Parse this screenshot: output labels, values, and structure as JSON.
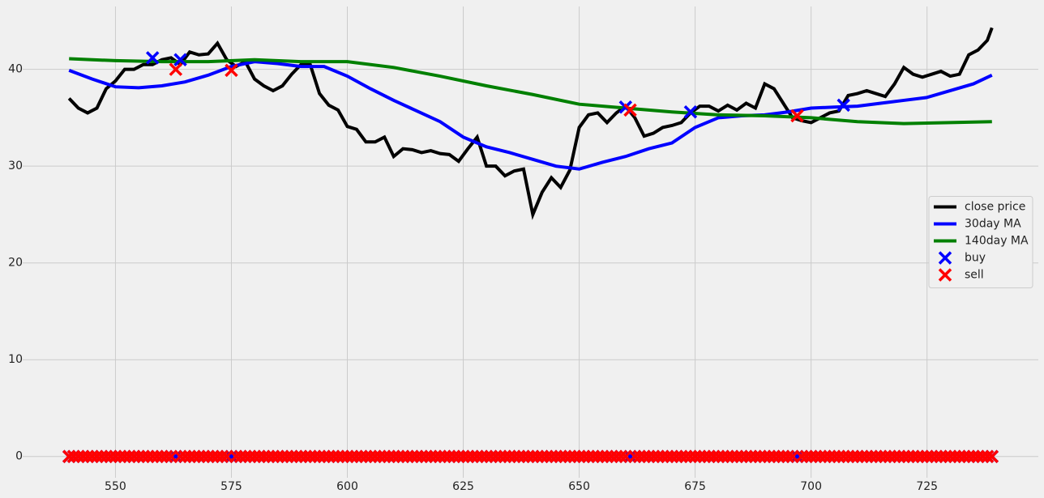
{
  "chart_data": {
    "type": "line",
    "x": [
      540,
      541,
      542,
      543,
      544,
      545,
      546,
      547,
      548,
      549,
      550,
      551,
      552,
      553,
      554,
      555,
      556,
      557,
      558,
      559,
      560,
      561,
      562,
      563,
      564,
      565,
      566,
      567,
      568,
      569,
      570,
      571,
      572,
      573,
      574,
      575,
      576,
      577,
      578,
      579,
      580,
      581,
      582,
      583,
      584,
      585,
      586,
      587,
      588,
      589,
      590,
      591,
      592,
      593,
      594,
      595,
      596,
      597,
      598,
      599,
      600,
      601,
      602,
      603,
      604,
      605,
      606,
      607,
      608,
      609,
      610,
      611,
      612,
      613,
      614,
      615,
      616,
      617,
      618,
      619,
      620,
      621,
      622,
      623,
      624,
      625,
      626,
      627,
      628,
      629,
      630,
      631,
      632,
      633,
      634,
      635,
      636,
      637,
      638,
      639,
      640,
      641,
      642,
      643,
      644,
      645,
      646,
      647,
      648,
      649,
      650,
      651,
      652,
      653,
      654,
      655,
      656,
      657,
      658,
      659,
      660,
      661,
      662,
      663,
      664,
      665,
      666,
      667,
      668,
      669,
      670,
      671,
      672,
      673,
      674,
      675,
      676,
      677,
      678,
      679,
      680,
      681,
      682,
      683,
      684,
      685,
      686,
      687,
      688,
      689,
      690,
      691,
      692,
      693,
      694,
      695,
      696,
      697,
      698,
      699,
      700,
      701,
      702,
      703,
      704,
      705,
      706,
      707,
      708,
      709,
      710,
      711,
      712,
      713,
      714,
      715,
      716,
      717,
      718,
      719,
      720,
      721,
      722,
      723,
      724,
      725,
      726,
      727,
      728,
      729,
      730,
      731,
      732,
      733,
      734,
      735,
      736,
      737,
      738,
      739
    ],
    "series": [
      {
        "name": "close price",
        "color": "#000000",
        "x": [
          540,
          542,
          544,
          546,
          548,
          550,
          552,
          554,
          556,
          558,
          560,
          562,
          564,
          566,
          568,
          570,
          572,
          574,
          576,
          578,
          580,
          582,
          584,
          586,
          588,
          590,
          592,
          594,
          596,
          598,
          600,
          602,
          604,
          606,
          608,
          610,
          612,
          614,
          616,
          618,
          620,
          622,
          624,
          626,
          628,
          630,
          632,
          634,
          636,
          638,
          640,
          642,
          644,
          646,
          648,
          650,
          652,
          654,
          656,
          658,
          660,
          662,
          664,
          666,
          668,
          670,
          672,
          674,
          676,
          678,
          680,
          682,
          684,
          686,
          688,
          690,
          692,
          694,
          696,
          698,
          700,
          702,
          704,
          706,
          708,
          710,
          712,
          714,
          716,
          718,
          720,
          722,
          724,
          726,
          728,
          730,
          732,
          734,
          736,
          738,
          739
        ],
        "values": [
          37.0,
          36.0,
          35.5,
          36.0,
          38.0,
          38.8,
          40.0,
          40.0,
          40.5,
          40.5,
          41.0,
          41.2,
          40.5,
          41.8,
          41.5,
          41.6,
          42.7,
          41.0,
          40.3,
          40.8,
          39.0,
          38.3,
          37.8,
          38.3,
          39.5,
          40.5,
          40.5,
          37.5,
          36.3,
          35.8,
          34.1,
          33.8,
          32.5,
          32.5,
          33.0,
          31.0,
          31.8,
          31.7,
          31.4,
          31.6,
          31.3,
          31.2,
          30.5,
          31.8,
          33.0,
          30.0,
          30.0,
          29.0,
          29.5,
          29.7,
          25.0,
          27.3,
          28.8,
          27.8,
          29.6,
          34.0,
          35.3,
          35.5,
          34.5,
          35.5,
          36.2,
          35.0,
          33.1,
          33.4,
          34.0,
          34.2,
          34.5,
          35.5,
          36.2,
          36.2,
          35.7,
          36.3,
          35.8,
          36.5,
          36.0,
          38.5,
          38.0,
          36.5,
          35.0,
          34.7,
          34.5,
          35.0,
          35.5,
          35.7,
          37.3,
          37.5,
          37.8,
          37.5,
          37.2,
          38.5,
          40.2,
          39.5,
          39.2,
          39.5,
          39.8,
          39.3,
          39.5,
          41.5,
          42.0,
          43.0,
          44.3
        ]
      },
      {
        "name": "30day MA",
        "color": "#0000ff",
        "x": [
          540,
          545,
          550,
          555,
          560,
          565,
          570,
          575,
          580,
          585,
          590,
          595,
          600,
          605,
          610,
          615,
          620,
          625,
          630,
          635,
          640,
          645,
          650,
          655,
          660,
          665,
          670,
          675,
          680,
          685,
          690,
          695,
          700,
          705,
          710,
          715,
          720,
          725,
          730,
          735,
          739
        ],
        "values": [
          39.9,
          39.0,
          38.2,
          38.1,
          38.3,
          38.7,
          39.4,
          40.3,
          40.8,
          40.6,
          40.3,
          40.3,
          39.3,
          38.0,
          36.8,
          35.7,
          34.6,
          33.0,
          32.0,
          31.4,
          30.7,
          30.0,
          29.7,
          30.4,
          31.0,
          31.8,
          32.4,
          34.0,
          35.0,
          35.2,
          35.3,
          35.6,
          36.0,
          36.1,
          36.2,
          36.5,
          36.8,
          37.1,
          37.8,
          38.5,
          39.4
        ]
      },
      {
        "name": "140day MA",
        "color": "#008000",
        "x": [
          540,
          550,
          560,
          570,
          580,
          590,
          600,
          610,
          620,
          630,
          640,
          650,
          660,
          670,
          680,
          690,
          700,
          710,
          720,
          730,
          739
        ],
        "values": [
          41.1,
          40.9,
          40.8,
          40.8,
          41.0,
          40.8,
          40.8,
          40.2,
          39.3,
          38.3,
          37.4,
          36.4,
          36.0,
          35.6,
          35.3,
          35.2,
          35.0,
          34.6,
          34.4,
          34.5,
          34.6
        ]
      },
      {
        "name": "buy",
        "color": "#0000ff",
        "marker": "x",
        "values": [
          0,
          0,
          0,
          0,
          0,
          0,
          0,
          0,
          0,
          0,
          0,
          0,
          0,
          0,
          0,
          0,
          0,
          0,
          41.2,
          0,
          0,
          0,
          0,
          0,
          41.0,
          0,
          0,
          0,
          0,
          0,
          0,
          0,
          0,
          0,
          0,
          0,
          0,
          0,
          0,
          0,
          0,
          0,
          0,
          0,
          0,
          0,
          0,
          0,
          0,
          0,
          0,
          0,
          0,
          0,
          0,
          0,
          0,
          0,
          0,
          0,
          0,
          0,
          0,
          0,
          0,
          0,
          0,
          0,
          0,
          0,
          0,
          0,
          0,
          0,
          0,
          0,
          0,
          0,
          0,
          0,
          0,
          0,
          0,
          0,
          0,
          0,
          0,
          0,
          0,
          0,
          0,
          0,
          0,
          0,
          0,
          0,
          0,
          0,
          0,
          0,
          0,
          0,
          0,
          0,
          0,
          0,
          0,
          0,
          0,
          0,
          0,
          0,
          0,
          0,
          0,
          0,
          0,
          0,
          0,
          0,
          36.1,
          0,
          0,
          0,
          0,
          0,
          0,
          0,
          0,
          0,
          0,
          0,
          0,
          0,
          35.6,
          0,
          0,
          0,
          0,
          0,
          0,
          0,
          0,
          0,
          0,
          0,
          0,
          0,
          0,
          0,
          0,
          0,
          0,
          0,
          0,
          0,
          0,
          0,
          0,
          0,
          0,
          0,
          0,
          0,
          0,
          0,
          0,
          36.3,
          0,
          0,
          0,
          0,
          0,
          0,
          0,
          0,
          0,
          0,
          0,
          0,
          0,
          0,
          0,
          0,
          0,
          0,
          0,
          0,
          0,
          0,
          0,
          0,
          0,
          0,
          0,
          0,
          0,
          0,
          0,
          0
        ]
      },
      {
        "name": "sell",
        "color": "#ff0000",
        "marker": "x",
        "values": [
          0,
          0,
          0,
          0,
          0,
          0,
          0,
          0,
          0,
          0,
          0,
          0,
          0,
          0,
          0,
          0,
          0,
          0,
          0,
          0,
          0,
          0,
          0,
          40.0,
          0,
          0,
          0,
          0,
          0,
          0,
          0,
          0,
          0,
          0,
          0,
          39.9,
          0,
          0,
          0,
          0,
          0,
          0,
          0,
          0,
          0,
          0,
          0,
          0,
          0,
          0,
          0,
          0,
          0,
          0,
          0,
          0,
          0,
          0,
          0,
          0,
          0,
          0,
          0,
          0,
          0,
          0,
          0,
          0,
          0,
          0,
          0,
          0,
          0,
          0,
          0,
          0,
          0,
          0,
          0,
          0,
          0,
          0,
          0,
          0,
          0,
          0,
          0,
          0,
          0,
          0,
          0,
          0,
          0,
          0,
          0,
          0,
          0,
          0,
          0,
          0,
          0,
          0,
          0,
          0,
          0,
          0,
          0,
          0,
          0,
          0,
          0,
          0,
          0,
          0,
          0,
          0,
          0,
          0,
          0,
          0,
          0,
          35.8,
          0,
          0,
          0,
          0,
          0,
          0,
          0,
          0,
          0,
          0,
          0,
          0,
          0,
          0,
          0,
          0,
          0,
          0,
          0,
          0,
          0,
          0,
          0,
          0,
          0,
          0,
          0,
          0,
          0,
          0,
          0,
          0,
          0,
          0,
          0,
          35.2,
          0,
          0,
          0,
          0,
          0,
          0,
          0,
          0,
          0,
          0,
          0,
          0,
          0,
          0,
          0,
          0,
          0,
          0,
          0,
          0,
          0,
          0,
          0,
          0,
          0,
          0,
          0,
          0,
          0,
          0,
          0,
          0,
          0,
          0,
          0,
          0,
          0,
          0,
          0,
          0,
          0,
          0
        ]
      }
    ],
    "xlim": [
      530,
      749
    ],
    "ylim": [
      -2.2,
      46.5
    ],
    "xticks": [
      550,
      575,
      600,
      625,
      650,
      675,
      700,
      725
    ],
    "yticks": [
      0,
      10,
      20,
      30,
      40
    ],
    "grid": true,
    "legend": "center right"
  }
}
